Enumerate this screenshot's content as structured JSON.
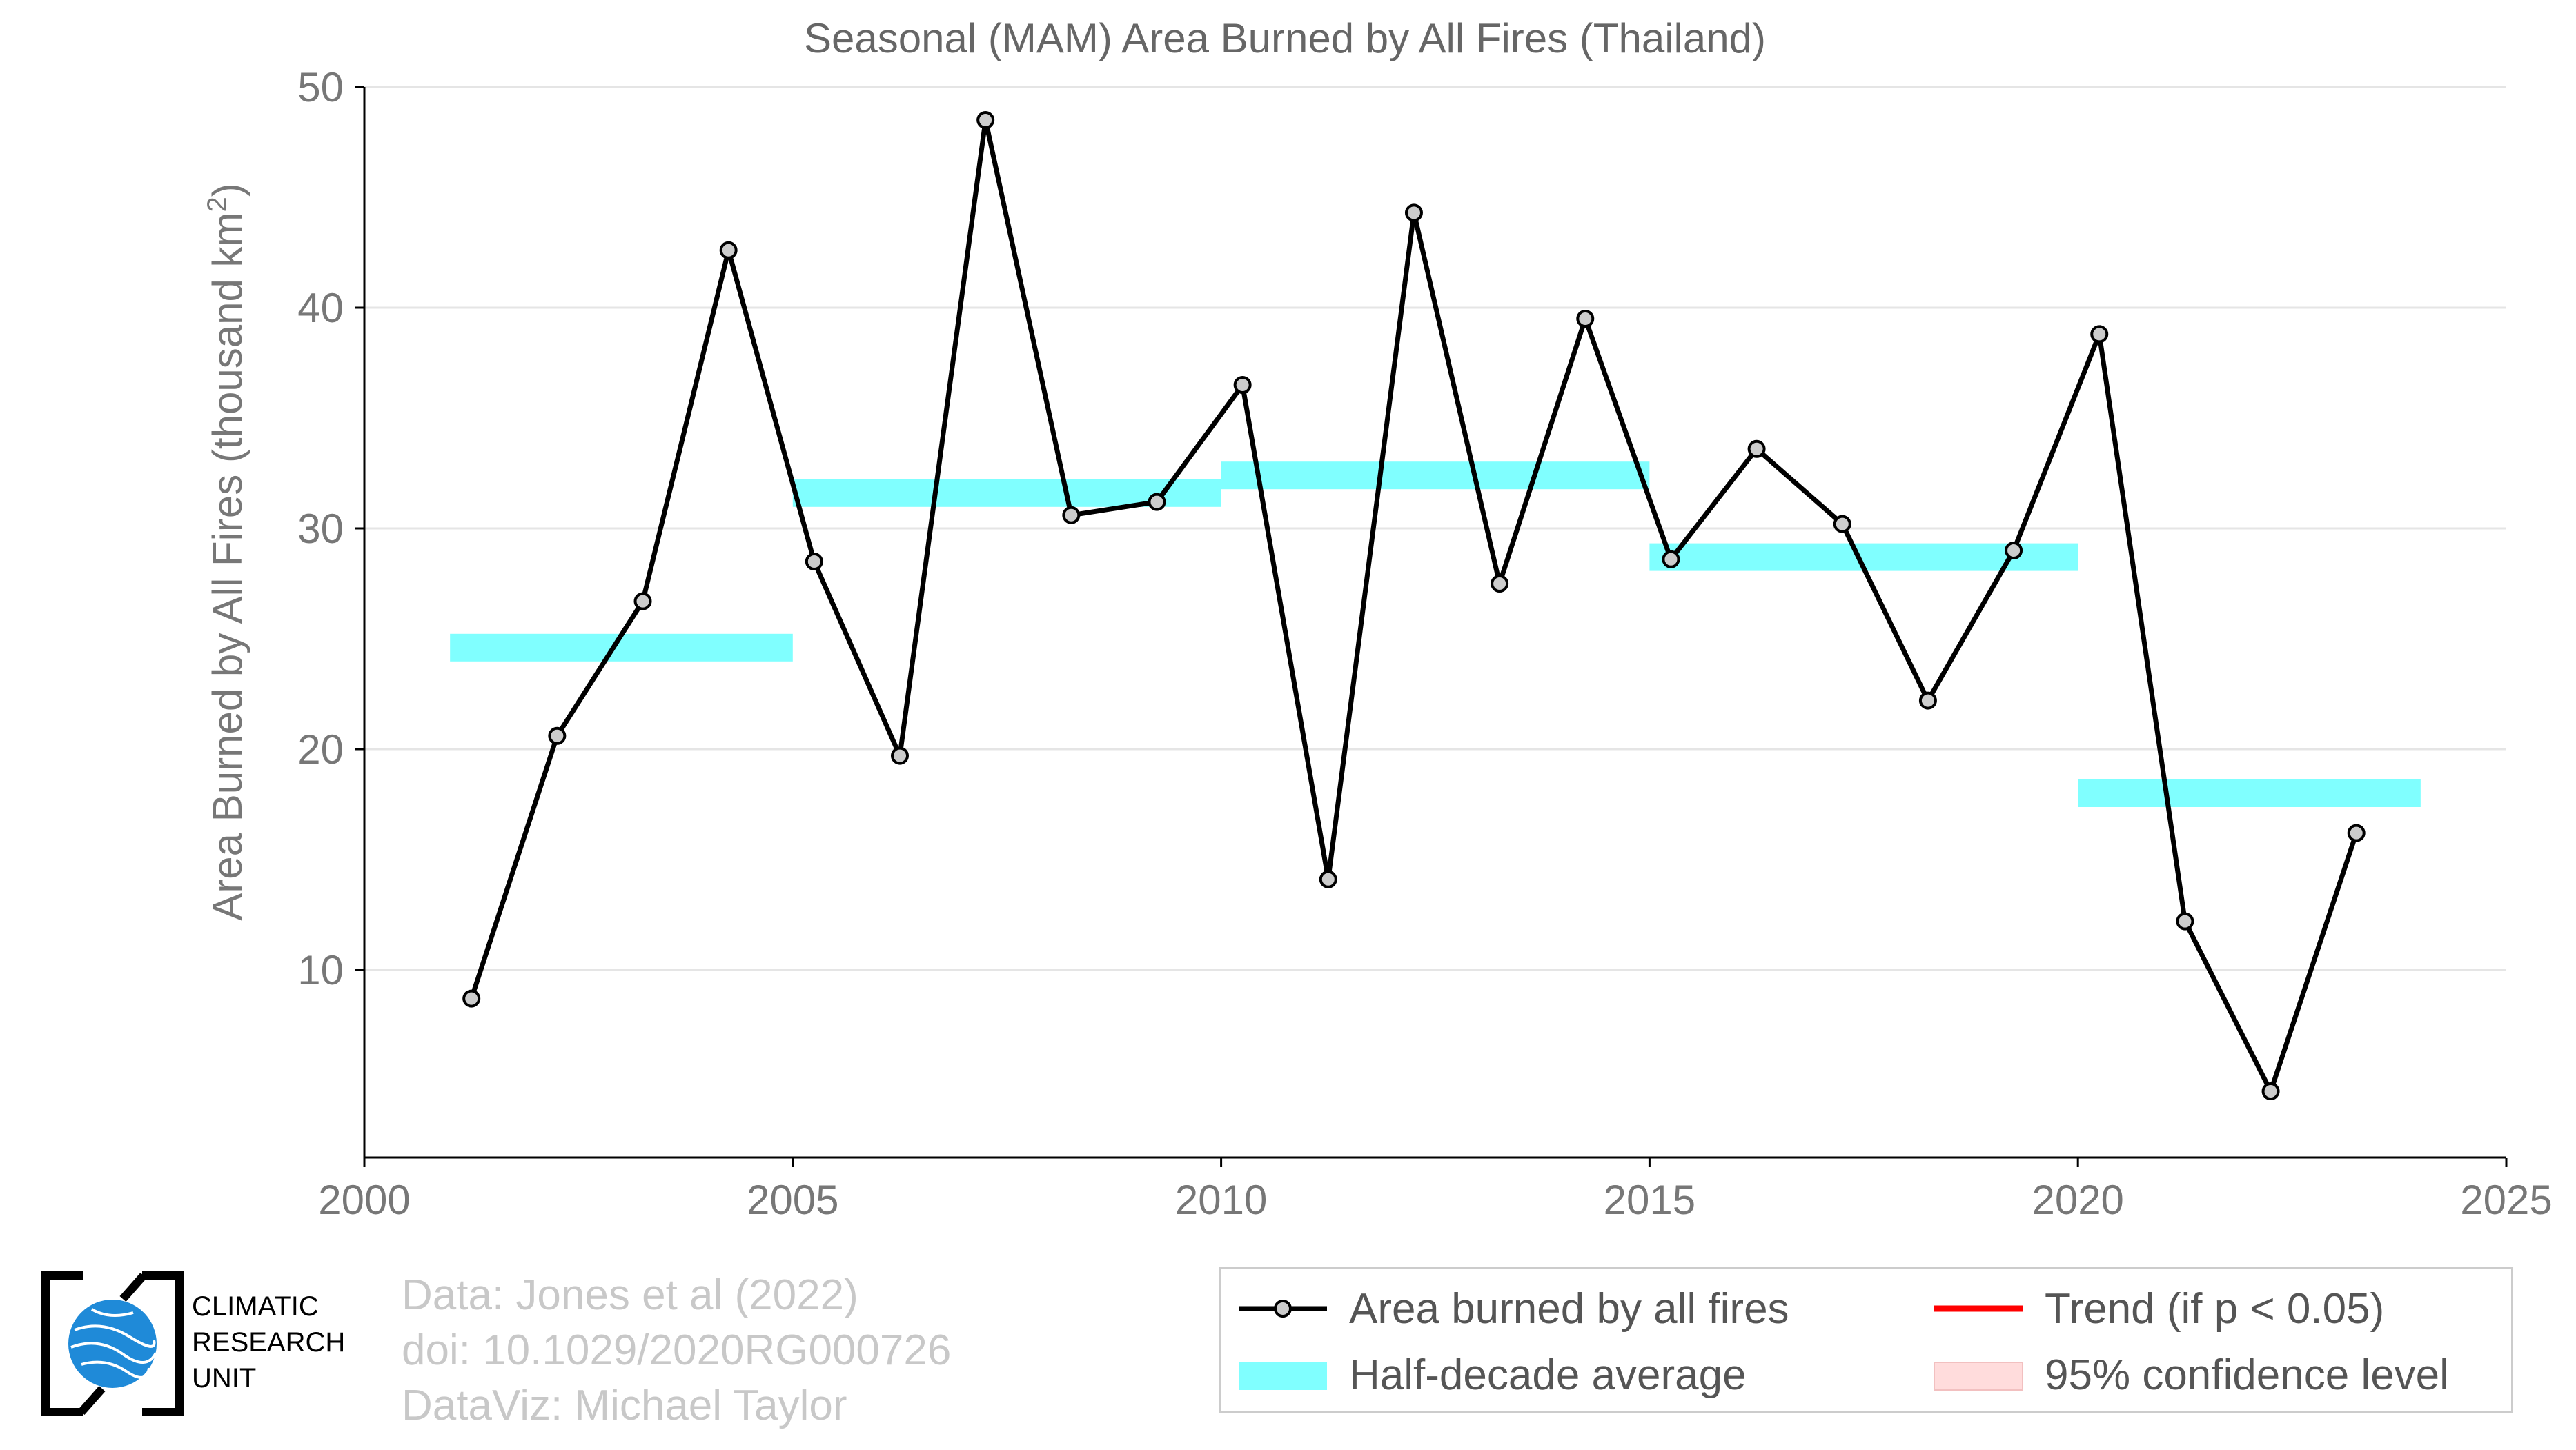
{
  "chart_data": {
    "type": "line",
    "title": "Seasonal (MAM) Area Burned by All Fires (Thailand)",
    "xlabel": "",
    "ylabel": "Area Burned by All Fires (thousand km",
    "ylabel_sup": "2",
    "ylabel_close": ")",
    "xlim": [
      2000,
      2025
    ],
    "ylim": [
      1.5,
      50
    ],
    "xticks": [
      2000,
      2005,
      2010,
      2015,
      2020,
      2025
    ],
    "yticks": [
      10,
      20,
      30,
      40,
      50
    ],
    "grid": true,
    "series": [
      {
        "name": "Area burned by all fires",
        "color": "#000000",
        "marker_fill": "#cccccc",
        "x": [
          2001.25,
          2002.25,
          2003.25,
          2004.25,
          2005.25,
          2006.25,
          2007.25,
          2008.25,
          2009.25,
          2010.25,
          2011.25,
          2012.25,
          2013.25,
          2014.25,
          2015.25,
          2016.25,
          2017.25,
          2018.25,
          2019.25,
          2020.25,
          2021.25,
          2022.25,
          2023.25
        ],
        "values": [
          8.7,
          20.6,
          26.7,
          42.6,
          28.5,
          19.7,
          48.5,
          30.6,
          31.2,
          36.5,
          14.1,
          44.3,
          27.5,
          39.5,
          28.6,
          33.6,
          30.2,
          22.2,
          29.0,
          38.8,
          12.2,
          4.5,
          16.2
        ]
      },
      {
        "name": "Half-decade average",
        "color": "#80ffff",
        "segments": [
          {
            "x": [
              2001,
              2005
            ],
            "value": 24.6
          },
          {
            "x": [
              2005,
              2010
            ],
            "value": 31.6
          },
          {
            "x": [
              2010,
              2015
            ],
            "value": 32.4
          },
          {
            "x": [
              2015,
              2020
            ],
            "value": 28.7
          },
          {
            "x": [
              2020,
              2024
            ],
            "value": 18.0
          }
        ]
      }
    ],
    "legend": {
      "placement": "bottom-right",
      "items": [
        {
          "label": "Area burned by all fires",
          "icon": "line-marker",
          "color": "#000000"
        },
        {
          "label": "Trend (if p < 0.05)",
          "icon": "line",
          "color": "#ff0000"
        },
        {
          "label": "Half-decade average",
          "icon": "patch",
          "color": "#80ffff"
        },
        {
          "label": "95% confidence level",
          "icon": "patch",
          "color": "#ffdcdc"
        }
      ]
    }
  },
  "credits": {
    "line1": "Data: Jones et al (2022)",
    "line2": "doi: 10.1029/2020RG000726",
    "line3": "DataViz: Michael Taylor"
  },
  "logo": {
    "line1": "CLIMATIC",
    "line2": "RESEARCH",
    "line3": "UNIT",
    "icon": "globe-icon",
    "color": "#1f8ad8"
  }
}
